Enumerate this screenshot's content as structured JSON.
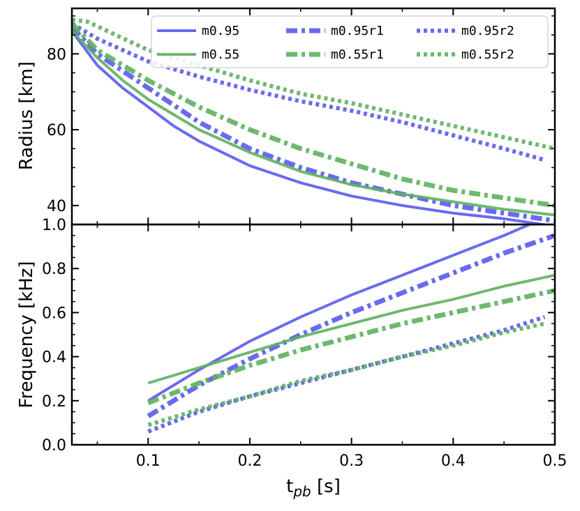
{
  "chart_data": [
    {
      "type": "line",
      "panel": "top",
      "title": "",
      "xlabel": "",
      "ylabel": "Radius [km]",
      "xlim": [
        0.025,
        0.5
      ],
      "ylim": [
        35,
        92
      ],
      "yticks": [
        40,
        60,
        80
      ],
      "ytick_labels": [
        "40",
        "60",
        "80"
      ],
      "series": [
        {
          "name": "m0.95",
          "color": "#5a5af0",
          "style": "solid",
          "x": [
            0.025,
            0.05,
            0.075,
            0.1,
            0.125,
            0.15,
            0.2,
            0.25,
            0.3,
            0.35,
            0.4,
            0.45,
            0.5
          ],
          "y": [
            86,
            77,
            71,
            66,
            61,
            57,
            50.5,
            46,
            42.5,
            40,
            38,
            36.5,
            34.5
          ]
        },
        {
          "name": "m0.95r1",
          "color": "#5a5af0",
          "style": "dashdot",
          "x": [
            0.025,
            0.05,
            0.1,
            0.15,
            0.2,
            0.25,
            0.3,
            0.35,
            0.4,
            0.45,
            0.5
          ],
          "y": [
            87,
            80,
            71,
            62,
            55,
            50,
            46,
            43,
            40,
            38,
            36
          ]
        },
        {
          "name": "m0.95r2",
          "color": "#5a5af0",
          "style": "dotted",
          "x": [
            0.025,
            0.05,
            0.1,
            0.15,
            0.2,
            0.25,
            0.3,
            0.35,
            0.4,
            0.45,
            0.49
          ],
          "y": [
            88,
            84,
            78,
            74,
            70.5,
            67.5,
            65,
            62,
            58.5,
            55,
            52
          ]
        },
        {
          "name": "m0.55",
          "color": "#5fb05f",
          "style": "solid",
          "x": [
            0.025,
            0.05,
            0.075,
            0.1,
            0.15,
            0.2,
            0.25,
            0.3,
            0.35,
            0.4,
            0.45,
            0.5
          ],
          "y": [
            86,
            79,
            73,
            68,
            60,
            54,
            49,
            45.5,
            43,
            41,
            39,
            37.5
          ]
        },
        {
          "name": "m0.55r1",
          "color": "#5fb05f",
          "style": "dashdot",
          "x": [
            0.025,
            0.05,
            0.1,
            0.15,
            0.2,
            0.25,
            0.3,
            0.35,
            0.4,
            0.45,
            0.5
          ],
          "y": [
            88,
            81,
            73,
            66,
            60,
            55,
            51,
            47,
            44,
            42,
            40
          ]
        },
        {
          "name": "m0.55r2",
          "color": "#5fb05f",
          "style": "dotted",
          "x": [
            0.025,
            0.04,
            0.06,
            0.1,
            0.15,
            0.2,
            0.25,
            0.3,
            0.35,
            0.4,
            0.45,
            0.5
          ],
          "y": [
            89,
            88.5,
            86,
            81,
            77,
            73,
            69.5,
            67,
            64,
            61,
            58,
            55
          ]
        }
      ]
    },
    {
      "type": "line",
      "panel": "bottom",
      "title": "",
      "xlabel": "t_pb [s]",
      "ylabel": "Frequency [kHz]",
      "xlim": [
        0.025,
        0.5
      ],
      "ylim": [
        0.0,
        1.0
      ],
      "xticks": [
        0.1,
        0.2,
        0.3,
        0.4,
        0.5
      ],
      "xtick_labels": [
        "0.1",
        "0.2",
        "0.3",
        "0.4",
        "0.5"
      ],
      "yticks": [
        0.0,
        0.2,
        0.4,
        0.6,
        0.8,
        1.0
      ],
      "ytick_labels": [
        "0.0",
        "0.2",
        "0.4",
        "0.6",
        "0.8",
        "1.0"
      ],
      "series": [
        {
          "name": "m0.95",
          "color": "#5a5af0",
          "style": "solid",
          "x": [
            0.1,
            0.15,
            0.2,
            0.25,
            0.3,
            0.35,
            0.4,
            0.45,
            0.475
          ],
          "y": [
            0.2,
            0.34,
            0.47,
            0.58,
            0.68,
            0.77,
            0.86,
            0.95,
            1.0
          ]
        },
        {
          "name": "m0.95r1",
          "color": "#5a5af0",
          "style": "dashdot",
          "x": [
            0.1,
            0.15,
            0.2,
            0.25,
            0.3,
            0.35,
            0.4,
            0.45,
            0.5
          ],
          "y": [
            0.13,
            0.27,
            0.39,
            0.5,
            0.6,
            0.69,
            0.78,
            0.87,
            0.95
          ]
        },
        {
          "name": "m0.95r2",
          "color": "#5a5af0",
          "style": "dotted",
          "x": [
            0.1,
            0.15,
            0.2,
            0.25,
            0.3,
            0.35,
            0.4,
            0.45,
            0.49
          ],
          "y": [
            0.06,
            0.15,
            0.22,
            0.28,
            0.34,
            0.4,
            0.46,
            0.52,
            0.58
          ]
        },
        {
          "name": "m0.55",
          "color": "#5fb05f",
          "style": "solid",
          "x": [
            0.1,
            0.15,
            0.2,
            0.25,
            0.3,
            0.35,
            0.4,
            0.45,
            0.5
          ],
          "y": [
            0.28,
            0.35,
            0.42,
            0.49,
            0.55,
            0.61,
            0.66,
            0.72,
            0.77
          ]
        },
        {
          "name": "m0.55r1",
          "color": "#5fb05f",
          "style": "dashdot",
          "x": [
            0.1,
            0.15,
            0.2,
            0.25,
            0.3,
            0.35,
            0.4,
            0.45,
            0.5
          ],
          "y": [
            0.19,
            0.28,
            0.36,
            0.43,
            0.49,
            0.55,
            0.6,
            0.65,
            0.7
          ]
        },
        {
          "name": "m0.55r2",
          "color": "#5fb05f",
          "style": "dotted",
          "x": [
            0.1,
            0.15,
            0.2,
            0.25,
            0.3,
            0.35,
            0.4,
            0.45,
            0.49
          ],
          "y": [
            0.09,
            0.16,
            0.22,
            0.29,
            0.34,
            0.4,
            0.45,
            0.51,
            0.55
          ]
        }
      ]
    }
  ],
  "legend": {
    "placement": "top-right",
    "entries": [
      "m0.95",
      "m0.95r1",
      "m0.95r2",
      "m0.55",
      "m0.55r1",
      "m0.55r2"
    ]
  },
  "x_axis_title": {
    "base": "t",
    "subscript": "pb",
    "unit": " [s]"
  }
}
